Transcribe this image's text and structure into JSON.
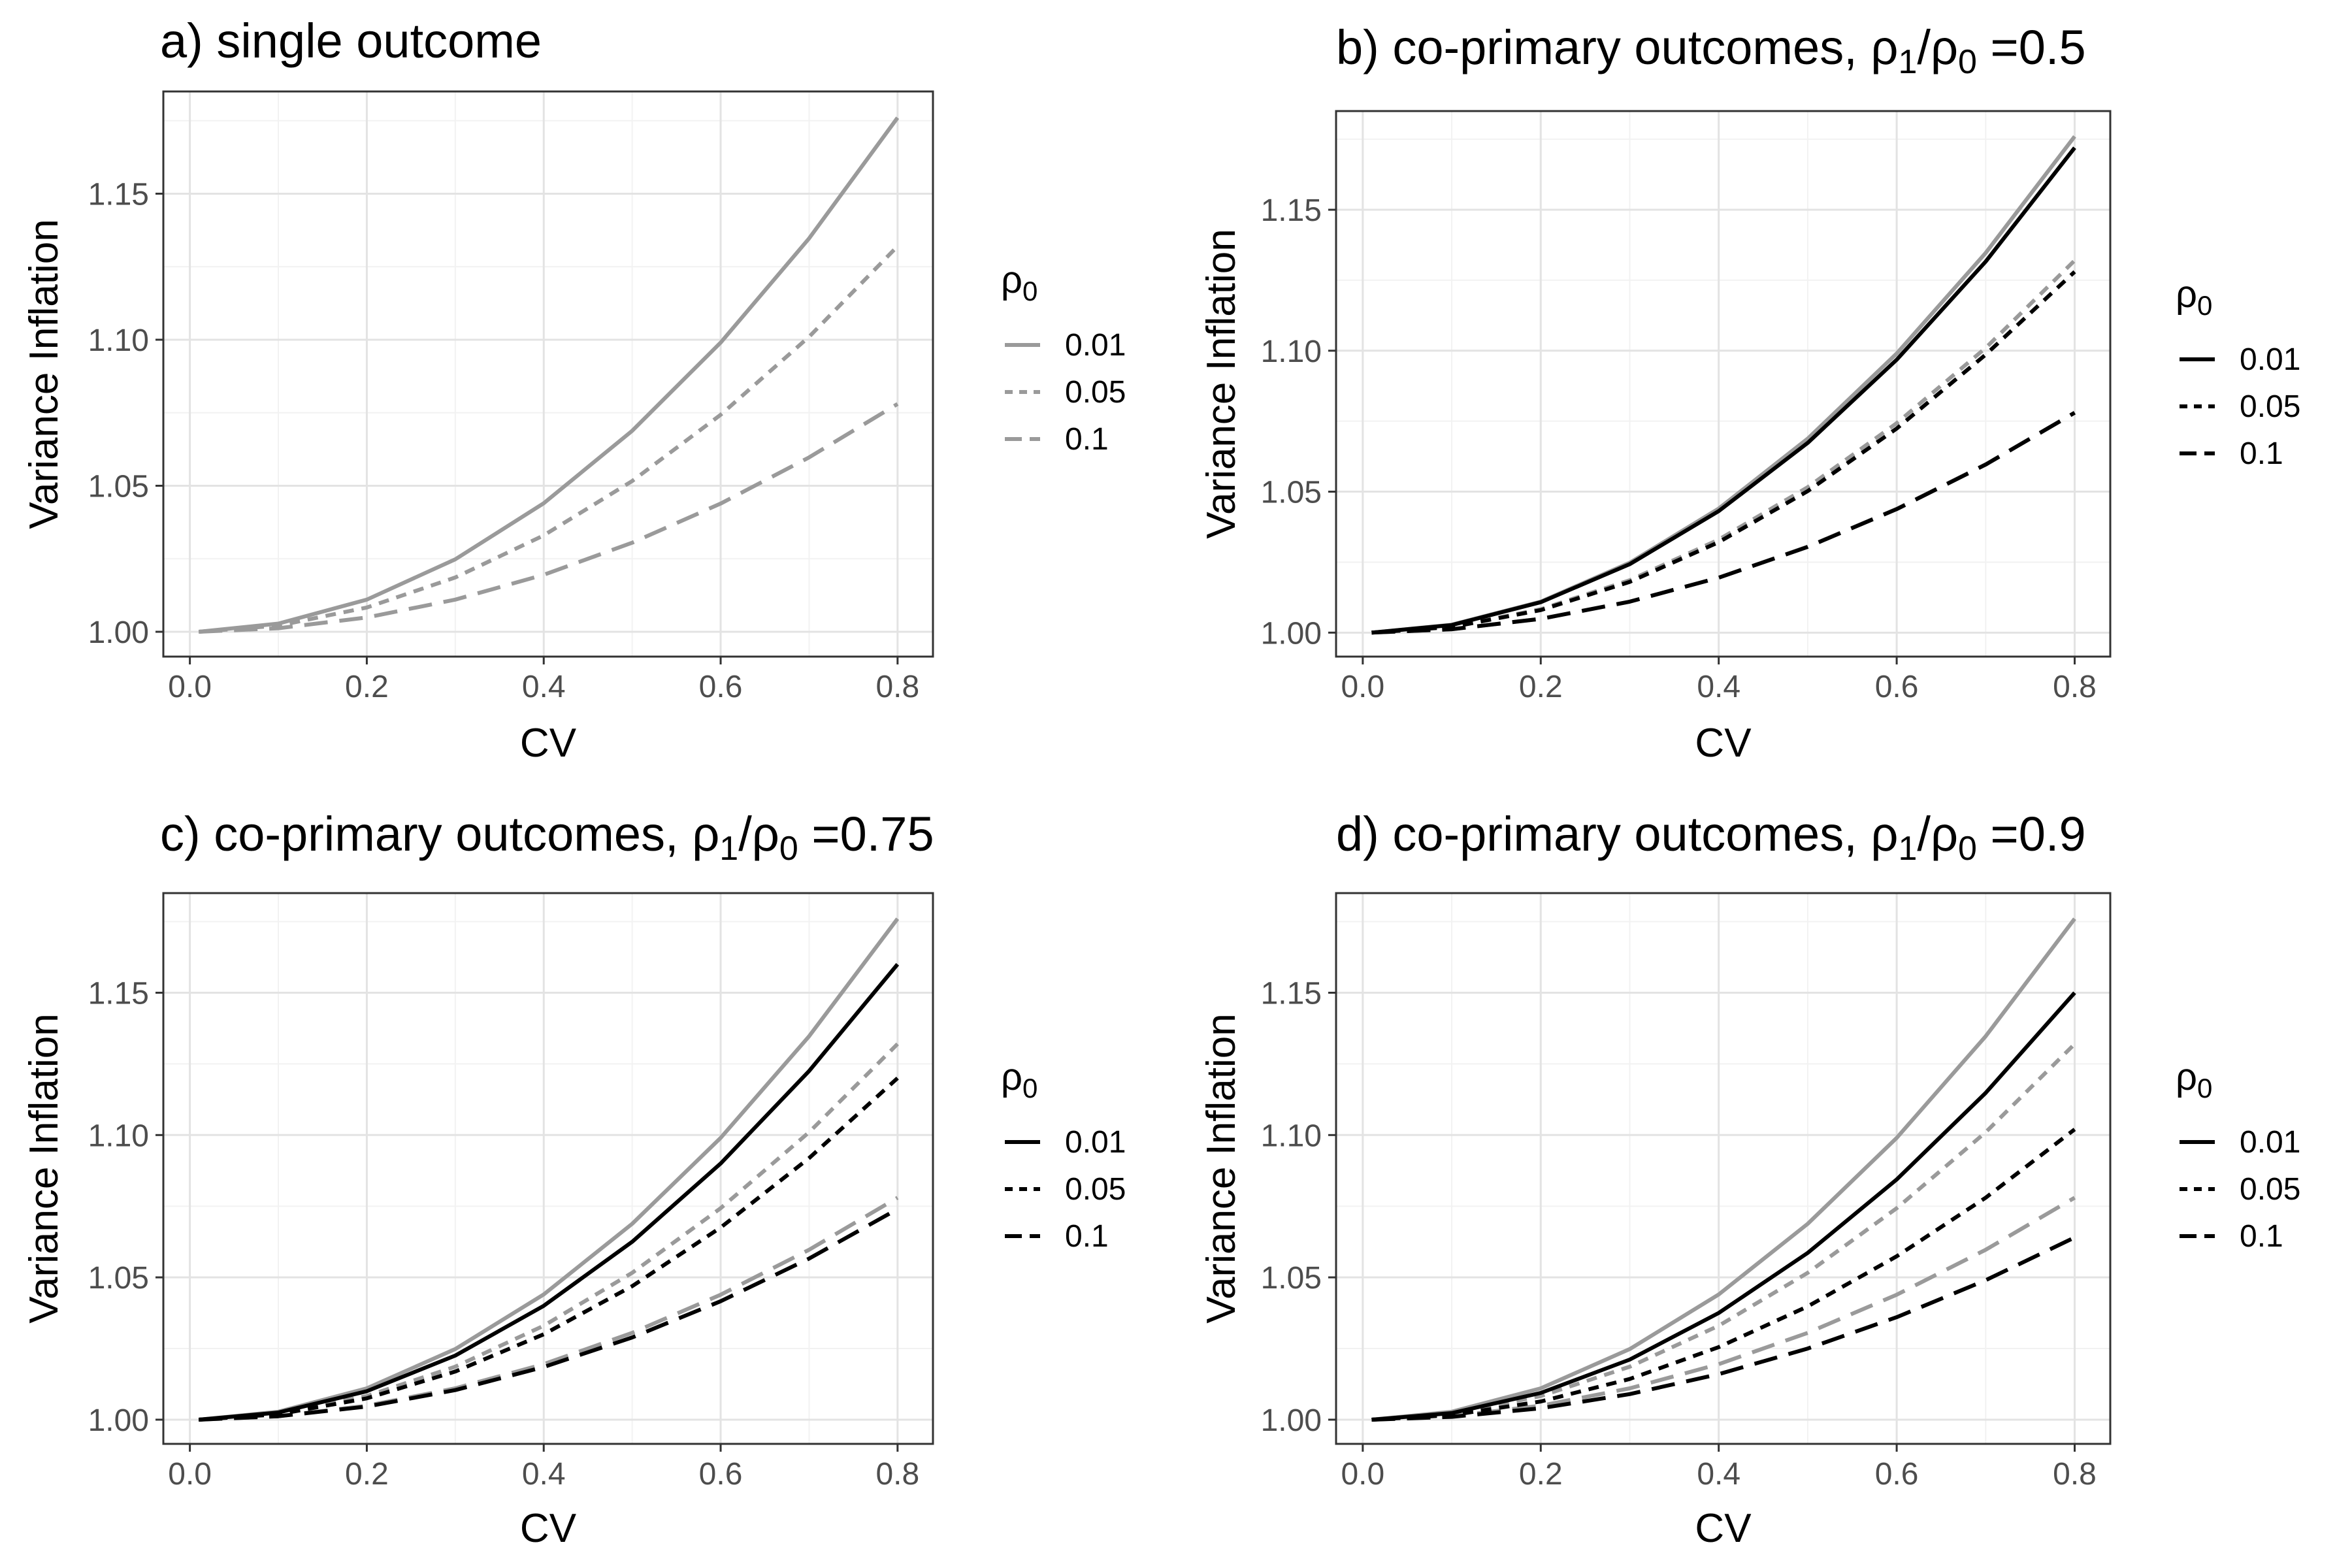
{
  "chart_data": [
    {
      "type": "line",
      "title_parts": [
        "a) single outcome"
      ],
      "xlabel": "CV",
      "ylabel": "Variance Inflation",
      "xlim": [
        -0.03,
        0.84
      ],
      "ylim": [
        0.9915,
        1.185
      ],
      "x_ticks": [
        "0.0",
        "0.2",
        "0.4",
        "0.6",
        "0.8"
      ],
      "x_tick_values": [
        0,
        0.2,
        0.4,
        0.6,
        0.8
      ],
      "y_ticks": [
        "1.00",
        "1.05",
        "1.10",
        "1.15"
      ],
      "y_tick_values": [
        1.0,
        1.05,
        1.1,
        1.15
      ],
      "grid": true,
      "legend_title": "ρ0",
      "legend_placement": "right",
      "legend": [
        {
          "label": "0.01",
          "dash": "solid"
        },
        {
          "label": "0.05",
          "dash": "dotted"
        },
        {
          "label": "0.1",
          "dash": "dashed"
        }
      ],
      "legend_color": "#9a9a9a",
      "x": [
        0.01,
        0.1,
        0.2,
        0.3,
        0.4,
        0.5,
        0.6,
        0.7,
        0.8
      ],
      "series": [
        {
          "color": "#9a9a9a",
          "dash": "solid",
          "values": [
            1.0,
            1.0028,
            1.011,
            1.0248,
            1.044,
            1.0688,
            1.099,
            1.1347,
            1.176
          ]
        },
        {
          "color": "#9a9a9a",
          "dash": "dotted",
          "values": [
            1.0,
            1.0021,
            1.0083,
            1.0186,
            1.033,
            1.0516,
            1.0743,
            1.101,
            1.132
          ]
        },
        {
          "color": "#9a9a9a",
          "dash": "dashed",
          "values": [
            1.0,
            1.0012,
            1.0049,
            1.011,
            1.0195,
            1.0305,
            1.0439,
            1.0597,
            1.078
          ]
        }
      ]
    },
    {
      "type": "line",
      "title_parts": [
        "b) co-primary outcomes, ",
        "ρ",
        "1",
        "/",
        "ρ",
        "0",
        " =0.5"
      ],
      "xlabel": "CV",
      "ylabel": "Variance Inflation",
      "xlim": [
        -0.03,
        0.84
      ],
      "ylim": [
        0.9915,
        1.185
      ],
      "x_ticks": [
        "0.0",
        "0.2",
        "0.4",
        "0.6",
        "0.8"
      ],
      "x_tick_values": [
        0,
        0.2,
        0.4,
        0.6,
        0.8
      ],
      "y_ticks": [
        "1.00",
        "1.05",
        "1.10",
        "1.15"
      ],
      "y_tick_values": [
        1.0,
        1.05,
        1.1,
        1.15
      ],
      "grid": true,
      "legend_title": "ρ0",
      "legend_placement": "right",
      "legend": [
        {
          "label": "0.01",
          "dash": "solid"
        },
        {
          "label": "0.05",
          "dash": "dotted"
        },
        {
          "label": "0.1",
          "dash": "dashed"
        }
      ],
      "legend_color": "#000000",
      "x": [
        0.01,
        0.1,
        0.2,
        0.3,
        0.4,
        0.5,
        0.6,
        0.7,
        0.8
      ],
      "series": [
        {
          "color": "#9a9a9a",
          "dash": "solid",
          "values": [
            1.0,
            1.0028,
            1.011,
            1.0248,
            1.044,
            1.0688,
            1.099,
            1.1347,
            1.176
          ]
        },
        {
          "color": "#9a9a9a",
          "dash": "dotted",
          "values": [
            1.0,
            1.0021,
            1.0083,
            1.0186,
            1.033,
            1.0516,
            1.0743,
            1.101,
            1.132
          ]
        },
        {
          "color": "#9a9a9a",
          "dash": "dashed",
          "values": [
            1.0,
            1.0012,
            1.0049,
            1.011,
            1.0195,
            1.0305,
            1.0439,
            1.0597,
            1.078
          ]
        },
        {
          "color": "#000000",
          "dash": "solid",
          "values": [
            1.0,
            1.0027,
            1.0108,
            1.0243,
            1.0431,
            1.0673,
            1.0968,
            1.1316,
            1.172
          ]
        },
        {
          "color": "#000000",
          "dash": "dotted",
          "values": [
            1.0,
            1.002,
            1.008,
            1.018,
            1.0321,
            1.0502,
            1.0724,
            1.0986,
            1.128
          ]
        },
        {
          "color": "#000000",
          "dash": "dashed",
          "values": [
            1.0,
            1.0012,
            1.0049,
            1.011,
            1.0195,
            1.0304,
            1.0438,
            1.0596,
            1.078
          ]
        }
      ]
    },
    {
      "type": "line",
      "title_parts": [
        "c) co-primary outcomes, ",
        "ρ",
        "1",
        "/",
        "ρ",
        "0",
        " =0.75"
      ],
      "xlabel": "CV",
      "ylabel": "Variance Inflation",
      "xlim": [
        -0.03,
        0.84
      ],
      "ylim": [
        0.9915,
        1.185
      ],
      "x_ticks": [
        "0.0",
        "0.2",
        "0.4",
        "0.6",
        "0.8"
      ],
      "x_tick_values": [
        0,
        0.2,
        0.4,
        0.6,
        0.8
      ],
      "y_ticks": [
        "1.00",
        "1.05",
        "1.10",
        "1.15"
      ],
      "y_tick_values": [
        1.0,
        1.05,
        1.1,
        1.15
      ],
      "grid": true,
      "legend_title": "ρ0",
      "legend_placement": "right",
      "legend": [
        {
          "label": "0.01",
          "dash": "solid"
        },
        {
          "label": "0.05",
          "dash": "dotted"
        },
        {
          "label": "0.1",
          "dash": "dashed"
        }
      ],
      "legend_color": "#000000",
      "x": [
        0.01,
        0.1,
        0.2,
        0.3,
        0.4,
        0.5,
        0.6,
        0.7,
        0.8
      ],
      "series": [
        {
          "color": "#9a9a9a",
          "dash": "solid",
          "values": [
            1.0,
            1.0028,
            1.011,
            1.0248,
            1.044,
            1.0688,
            1.099,
            1.1347,
            1.176
          ]
        },
        {
          "color": "#9a9a9a",
          "dash": "dotted",
          "values": [
            1.0,
            1.0021,
            1.0083,
            1.0186,
            1.033,
            1.0516,
            1.0743,
            1.101,
            1.132
          ]
        },
        {
          "color": "#9a9a9a",
          "dash": "dashed",
          "values": [
            1.0,
            1.0012,
            1.0049,
            1.011,
            1.0195,
            1.0305,
            1.0439,
            1.0597,
            1.078
          ]
        },
        {
          "color": "#000000",
          "dash": "solid",
          "values": [
            1.0,
            1.0025,
            1.01,
            1.0225,
            1.04,
            1.0625,
            1.09,
            1.1225,
            1.16
          ]
        },
        {
          "color": "#000000",
          "dash": "dotted",
          "values": [
            1.0,
            1.0019,
            1.0075,
            1.0169,
            1.03,
            1.0469,
            1.0675,
            1.0919,
            1.12
          ]
        },
        {
          "color": "#000000",
          "dash": "dashed",
          "values": [
            1.0,
            1.0012,
            1.0046,
            1.0104,
            1.0185,
            1.0289,
            1.0416,
            1.0566,
            1.074
          ]
        }
      ]
    },
    {
      "type": "line",
      "title_parts": [
        "d) co-primary outcomes, ",
        "ρ",
        "1",
        "/",
        "ρ",
        "0",
        " =0.9"
      ],
      "xlabel": "CV",
      "ylabel": "Variance Inflation",
      "xlim": [
        -0.03,
        0.84
      ],
      "ylim": [
        0.9915,
        1.185
      ],
      "x_ticks": [
        "0.0",
        "0.2",
        "0.4",
        "0.6",
        "0.8"
      ],
      "x_tick_values": [
        0,
        0.2,
        0.4,
        0.6,
        0.8
      ],
      "y_ticks": [
        "1.00",
        "1.05",
        "1.10",
        "1.15"
      ],
      "y_tick_values": [
        1.0,
        1.05,
        1.1,
        1.15
      ],
      "grid": true,
      "legend_title": "ρ0",
      "legend_placement": "right",
      "legend": [
        {
          "label": "0.01",
          "dash": "solid"
        },
        {
          "label": "0.05",
          "dash": "dotted"
        },
        {
          "label": "0.1",
          "dash": "dashed"
        }
      ],
      "legend_color": "#000000",
      "x": [
        0.01,
        0.1,
        0.2,
        0.3,
        0.4,
        0.5,
        0.6,
        0.7,
        0.8
      ],
      "series": [
        {
          "color": "#9a9a9a",
          "dash": "solid",
          "values": [
            1.0,
            1.0028,
            1.011,
            1.0248,
            1.044,
            1.0688,
            1.099,
            1.1347,
            1.176
          ]
        },
        {
          "color": "#9a9a9a",
          "dash": "dotted",
          "values": [
            1.0,
            1.0021,
            1.0083,
            1.0186,
            1.033,
            1.0516,
            1.0743,
            1.101,
            1.132
          ]
        },
        {
          "color": "#9a9a9a",
          "dash": "dashed",
          "values": [
            1.0,
            1.0012,
            1.0049,
            1.011,
            1.0195,
            1.0305,
            1.0439,
            1.0597,
            1.078
          ]
        },
        {
          "color": "#000000",
          "dash": "solid",
          "values": [
            1.0,
            1.0023,
            1.0094,
            1.0211,
            1.0375,
            1.0586,
            1.0844,
            1.1148,
            1.15
          ]
        },
        {
          "color": "#000000",
          "dash": "dotted",
          "values": [
            1.0,
            1.0016,
            1.0064,
            1.0143,
            1.0255,
            1.0398,
            1.0574,
            1.078,
            1.102
          ]
        },
        {
          "color": "#000000",
          "dash": "dashed",
          "values": [
            1.0,
            1.001,
            1.004,
            1.009,
            1.016,
            1.025,
            1.036,
            1.049,
            1.064
          ]
        }
      ]
    }
  ]
}
